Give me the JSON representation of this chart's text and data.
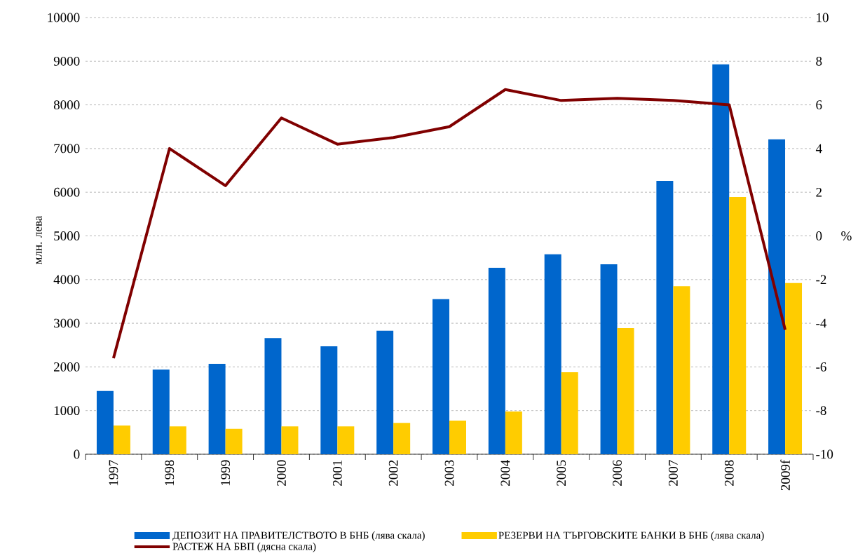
{
  "chart_data": {
    "type": "bar",
    "categories": [
      "1997",
      "1998",
      "1999",
      "2000",
      "2001",
      "2002",
      "2003",
      "2004",
      "2005",
      "2006",
      "2007",
      "2008",
      "2009f"
    ],
    "ylabel": "млн. лева",
    "y2label": "%",
    "ylim": [
      0,
      10000
    ],
    "yticks": [
      0,
      1000,
      2000,
      3000,
      4000,
      5000,
      6000,
      7000,
      8000,
      9000,
      10000
    ],
    "y2lim": [
      -10,
      10
    ],
    "y2ticks": [
      -10,
      -8,
      -6,
      -4,
      -2,
      0,
      2,
      4,
      6,
      8,
      10
    ],
    "grid": "y",
    "legend": "bottom",
    "marker": "none",
    "series": [
      {
        "name": "ДЕПОЗИТ НА ПРАВИТЕЛСТВОТО В БНБ (лява скала)",
        "color": "#0066cc",
        "values": [
          1450,
          1940,
          2070,
          2660,
          2470,
          2830,
          3550,
          4270,
          4580,
          4350,
          6260,
          8930,
          7210
        ]
      },
      {
        "name": "РЕЗЕРВИ НА ТЪРГОВСКИТЕ БАНКИ В БНБ (лява скала)",
        "color": "#ffcc00",
        "values": [
          660,
          640,
          580,
          640,
          640,
          720,
          770,
          980,
          1880,
          2890,
          3850,
          5890,
          3920
        ]
      },
      {
        "name": "РАСТЕЖ НА БВП (дясна скала)",
        "type": "line",
        "axis": "y2",
        "color": "#800000",
        "values": [
          -5.6,
          4.0,
          2.3,
          5.4,
          4.2,
          4.5,
          5.0,
          6.7,
          6.2,
          6.3,
          6.2,
          6.0,
          -4.3
        ]
      }
    ]
  }
}
